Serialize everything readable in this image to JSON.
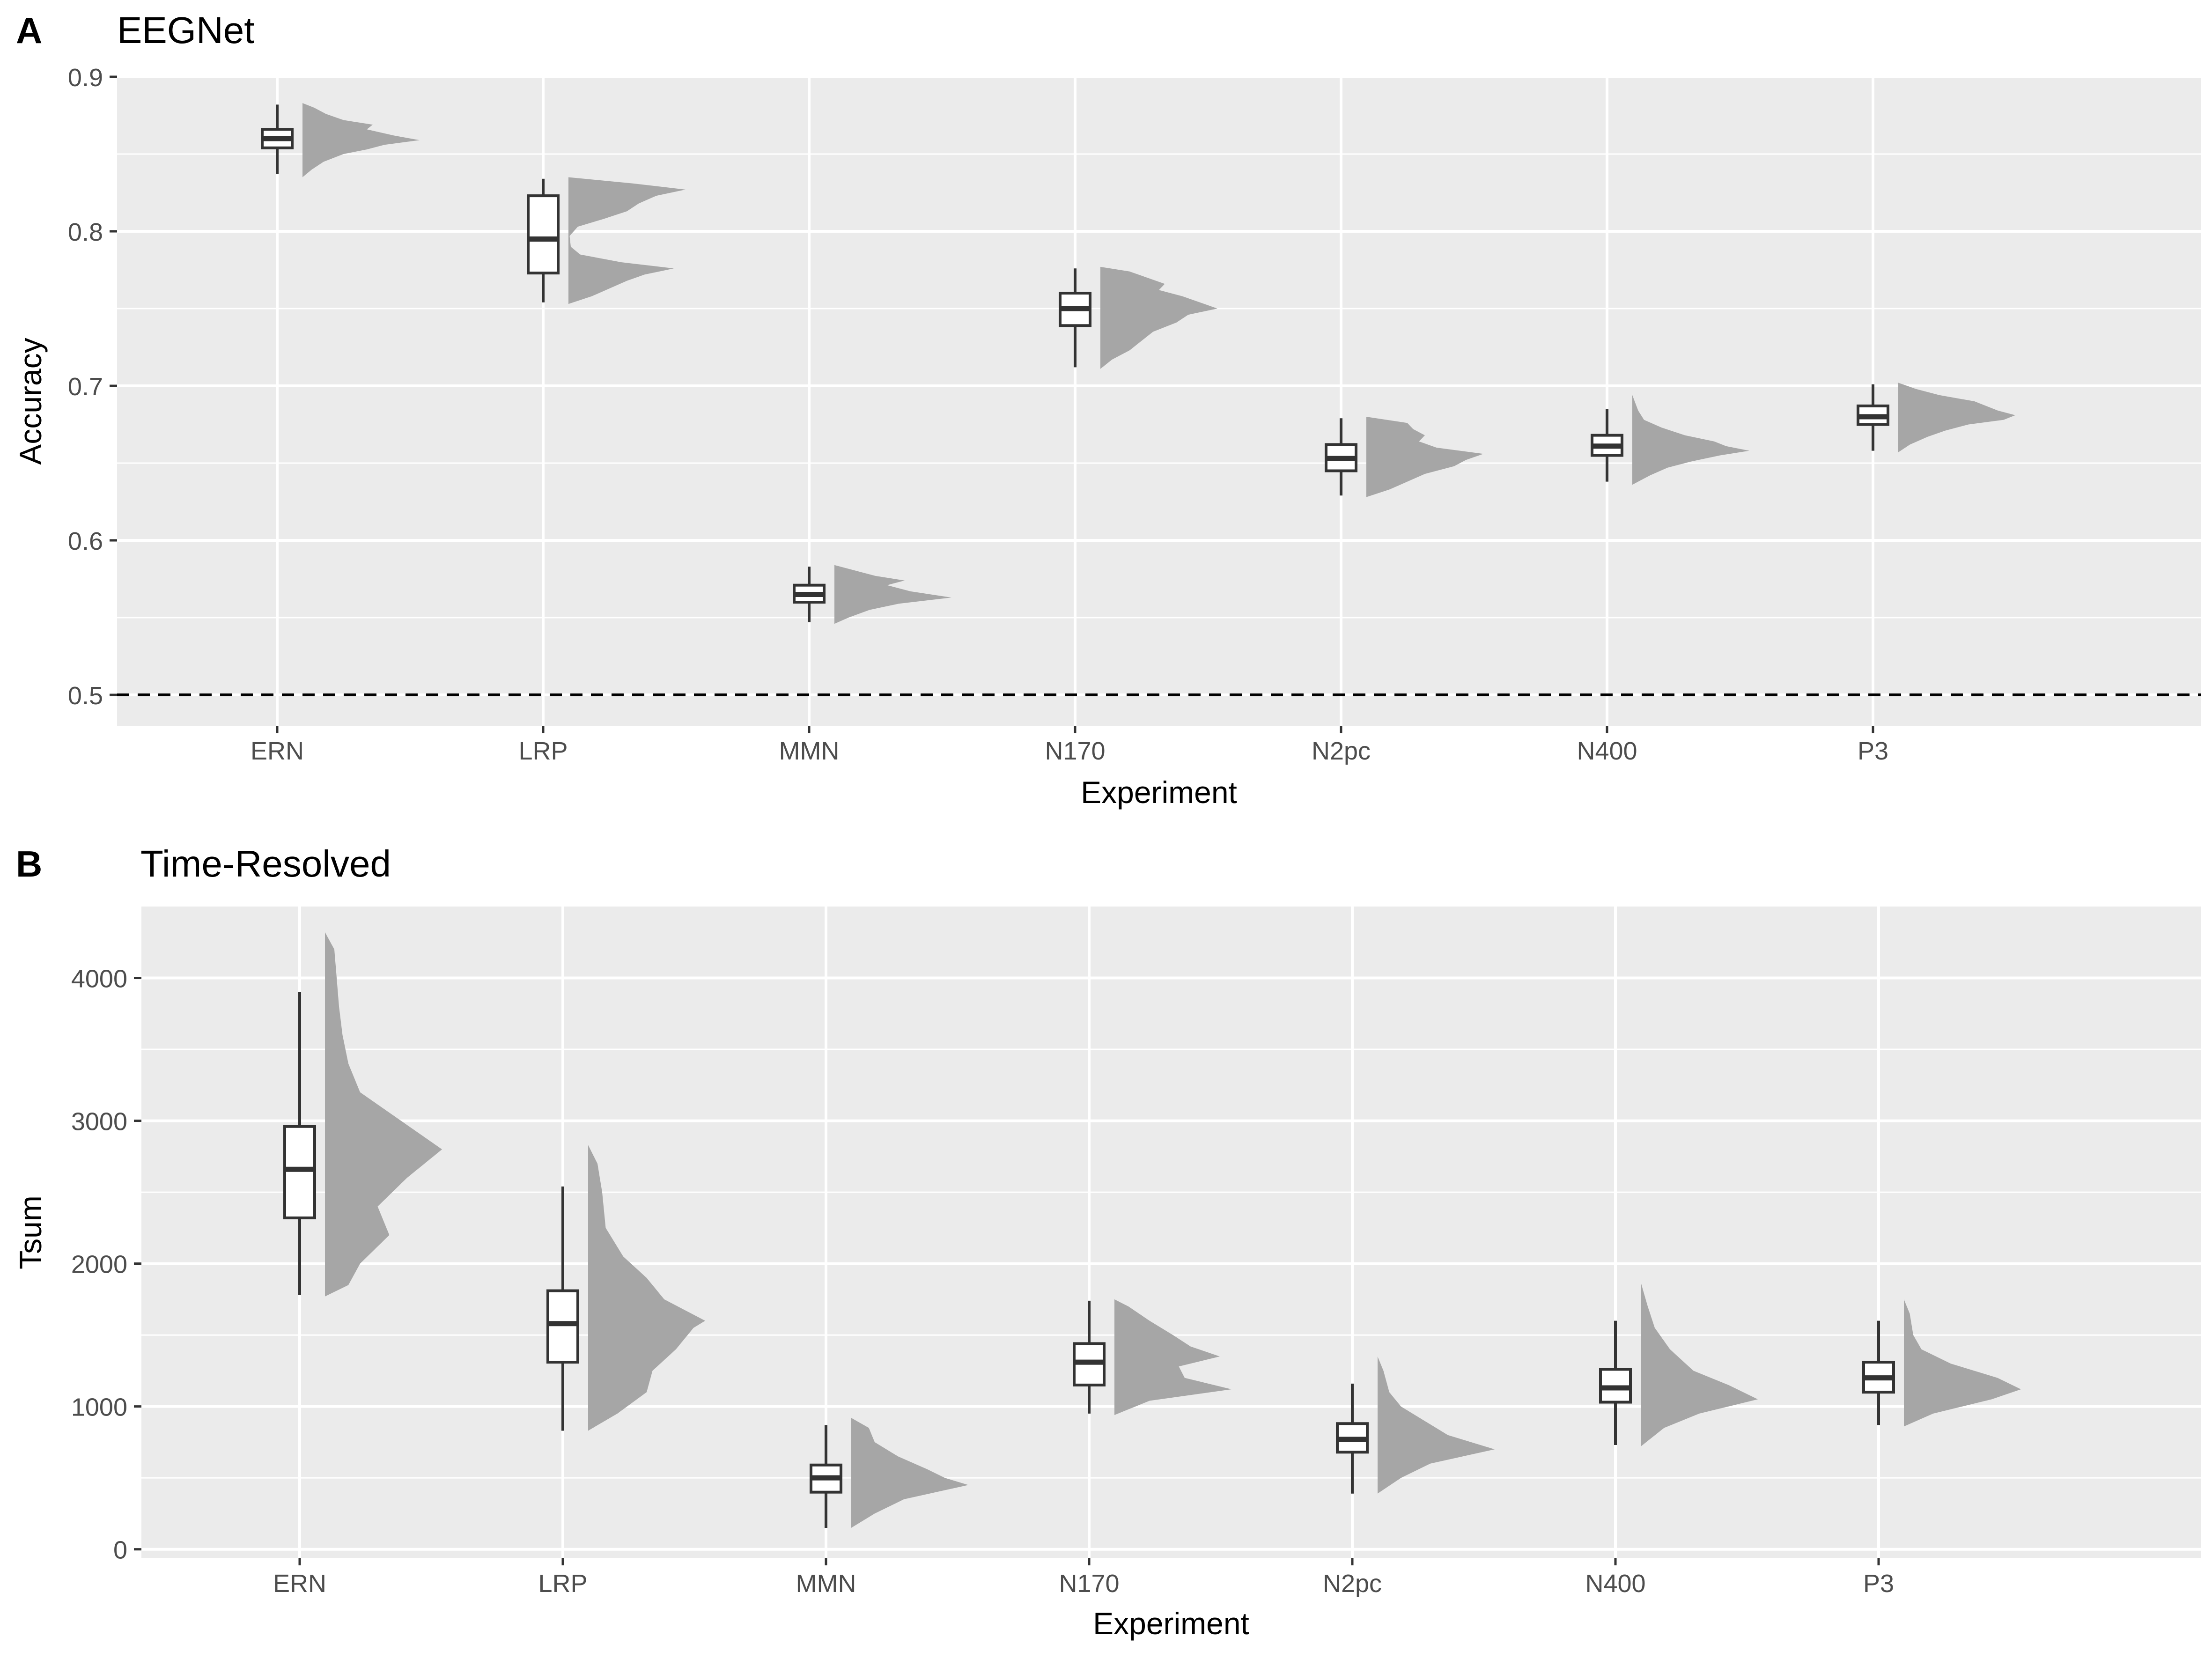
{
  "panels": [
    {
      "tag": "A",
      "title": "EEGNet"
    },
    {
      "tag": "B",
      "title": "Time-Resolved"
    }
  ],
  "colors": {
    "panel_bg": "#ebebeb",
    "grid": "#ffffff",
    "box_fill": "#ffffff",
    "box_line": "#333333",
    "violin": "#a6a6a6",
    "axis_text": "#4d4d4d",
    "title": "#000000"
  },
  "chart_data": [
    {
      "type": "raincloud",
      "panel": "A",
      "title": "EEGNet",
      "xlabel": "Experiment",
      "ylabel": "Accuracy",
      "categories": [
        "ERN",
        "LRP",
        "MMN",
        "N170",
        "N2pc",
        "N400",
        "P3"
      ],
      "ylim": [
        0.48,
        0.9
      ],
      "yticks": [
        0.5,
        0.6,
        0.7,
        0.8,
        0.9
      ],
      "ytick_labels": [
        "0.5",
        "0.6",
        "0.7",
        "0.8",
        "0.9"
      ],
      "reference_line": {
        "y": 0.5,
        "style": "dashed"
      },
      "grid": true,
      "boxes": [
        {
          "category": "ERN",
          "min": 0.837,
          "q1": 0.854,
          "median": 0.86,
          "q3": 0.866,
          "max": 0.882
        },
        {
          "category": "LRP",
          "min": 0.754,
          "q1": 0.773,
          "median": 0.795,
          "q3": 0.823,
          "max": 0.834
        },
        {
          "category": "MMN",
          "min": 0.547,
          "q1": 0.56,
          "median": 0.565,
          "q3": 0.571,
          "max": 0.583
        },
        {
          "category": "N170",
          "min": 0.712,
          "q1": 0.739,
          "median": 0.75,
          "q3": 0.76,
          "max": 0.776
        },
        {
          "category": "N2pc",
          "min": 0.629,
          "q1": 0.645,
          "median": 0.653,
          "q3": 0.662,
          "max": 0.679
        },
        {
          "category": "N400",
          "min": 0.638,
          "q1": 0.655,
          "median": 0.661,
          "q3": 0.668,
          "max": 0.685
        },
        {
          "category": "P3",
          "min": 0.658,
          "q1": 0.675,
          "median": 0.68,
          "q3": 0.687,
          "max": 0.701
        }
      ],
      "densities": [
        {
          "category": "ERN",
          "points": [
            [
              0.835,
              0
            ],
            [
              0.84,
              0.08
            ],
            [
              0.845,
              0.18
            ],
            [
              0.85,
              0.35
            ],
            [
              0.853,
              0.55
            ],
            [
              0.856,
              0.7
            ],
            [
              0.859,
              1.0
            ],
            [
              0.862,
              0.78
            ],
            [
              0.866,
              0.55
            ],
            [
              0.869,
              0.6
            ],
            [
              0.872,
              0.35
            ],
            [
              0.876,
              0.2
            ],
            [
              0.88,
              0.1
            ],
            [
              0.883,
              0
            ]
          ]
        },
        {
          "category": "LRP",
          "points": [
            [
              0.753,
              0
            ],
            [
              0.758,
              0.2
            ],
            [
              0.763,
              0.35
            ],
            [
              0.768,
              0.5
            ],
            [
              0.772,
              0.65
            ],
            [
              0.776,
              0.9
            ],
            [
              0.78,
              0.45
            ],
            [
              0.785,
              0.1
            ],
            [
              0.79,
              0.02
            ],
            [
              0.797,
              0.01
            ],
            [
              0.803,
              0.08
            ],
            [
              0.808,
              0.3
            ],
            [
              0.813,
              0.5
            ],
            [
              0.818,
              0.6
            ],
            [
              0.823,
              0.75
            ],
            [
              0.827,
              1.0
            ],
            [
              0.831,
              0.55
            ],
            [
              0.835,
              0
            ]
          ]
        },
        {
          "category": "MMN",
          "points": [
            [
              0.546,
              0
            ],
            [
              0.55,
              0.12
            ],
            [
              0.555,
              0.3
            ],
            [
              0.559,
              0.55
            ],
            [
              0.563,
              1.0
            ],
            [
              0.567,
              0.65
            ],
            [
              0.571,
              0.45
            ],
            [
              0.574,
              0.6
            ],
            [
              0.577,
              0.35
            ],
            [
              0.58,
              0.2
            ],
            [
              0.584,
              0
            ]
          ]
        },
        {
          "category": "N170",
          "points": [
            [
              0.711,
              0
            ],
            [
              0.717,
              0.1
            ],
            [
              0.723,
              0.25
            ],
            [
              0.729,
              0.35
            ],
            [
              0.735,
              0.45
            ],
            [
              0.741,
              0.65
            ],
            [
              0.746,
              0.75
            ],
            [
              0.75,
              1.0
            ],
            [
              0.754,
              0.85
            ],
            [
              0.758,
              0.7
            ],
            [
              0.762,
              0.5
            ],
            [
              0.766,
              0.55
            ],
            [
              0.77,
              0.4
            ],
            [
              0.774,
              0.25
            ],
            [
              0.777,
              0
            ]
          ]
        },
        {
          "category": "N2pc",
          "points": [
            [
              0.628,
              0
            ],
            [
              0.633,
              0.2
            ],
            [
              0.638,
              0.35
            ],
            [
              0.643,
              0.5
            ],
            [
              0.648,
              0.75
            ],
            [
              0.652,
              0.85
            ],
            [
              0.656,
              1.0
            ],
            [
              0.66,
              0.6
            ],
            [
              0.664,
              0.45
            ],
            [
              0.668,
              0.5
            ],
            [
              0.672,
              0.4
            ],
            [
              0.676,
              0.35
            ],
            [
              0.68,
              0
            ]
          ]
        },
        {
          "category": "N400",
          "points": [
            [
              0.636,
              0
            ],
            [
              0.642,
              0.15
            ],
            [
              0.647,
              0.3
            ],
            [
              0.651,
              0.5
            ],
            [
              0.655,
              0.75
            ],
            [
              0.658,
              1.0
            ],
            [
              0.661,
              0.8
            ],
            [
              0.664,
              0.7
            ],
            [
              0.668,
              0.45
            ],
            [
              0.673,
              0.25
            ],
            [
              0.678,
              0.1
            ],
            [
              0.684,
              0.05
            ],
            [
              0.69,
              0.02
            ],
            [
              0.694,
              0
            ]
          ]
        },
        {
          "category": "P3",
          "points": [
            [
              0.657,
              0
            ],
            [
              0.662,
              0.1
            ],
            [
              0.667,
              0.25
            ],
            [
              0.671,
              0.4
            ],
            [
              0.675,
              0.6
            ],
            [
              0.678,
              0.9
            ],
            [
              0.681,
              1.0
            ],
            [
              0.684,
              0.85
            ],
            [
              0.687,
              0.75
            ],
            [
              0.69,
              0.65
            ],
            [
              0.694,
              0.35
            ],
            [
              0.698,
              0.15
            ],
            [
              0.702,
              0
            ]
          ]
        }
      ]
    },
    {
      "type": "raincloud",
      "panel": "B",
      "title": "Time-Resolved",
      "xlabel": "Experiment",
      "ylabel": "Tsum",
      "categories": [
        "ERN",
        "LRP",
        "MMN",
        "N170",
        "N2pc",
        "N400",
        "P3"
      ],
      "ylim": [
        -60,
        4500
      ],
      "yticks": [
        0,
        1000,
        2000,
        3000,
        4000
      ],
      "ytick_labels": [
        "0",
        "1000",
        "2000",
        "3000",
        "4000"
      ],
      "grid": true,
      "boxes": [
        {
          "category": "ERN",
          "min": 1780,
          "q1": 2320,
          "median": 2660,
          "q3": 2960,
          "max": 3900
        },
        {
          "category": "LRP",
          "min": 830,
          "q1": 1310,
          "median": 1580,
          "q3": 1810,
          "max": 2540
        },
        {
          "category": "MMN",
          "min": 150,
          "q1": 400,
          "median": 500,
          "q3": 590,
          "max": 870
        },
        {
          "category": "N170",
          "min": 950,
          "q1": 1150,
          "median": 1310,
          "q3": 1440,
          "max": 1740
        },
        {
          "category": "N2pc",
          "min": 390,
          "q1": 680,
          "median": 770,
          "q3": 880,
          "max": 1160
        },
        {
          "category": "N400",
          "min": 730,
          "q1": 1030,
          "median": 1130,
          "q3": 1260,
          "max": 1600
        },
        {
          "category": "P3",
          "min": 870,
          "q1": 1100,
          "median": 1200,
          "q3": 1310,
          "max": 1600
        }
      ],
      "densities": [
        {
          "category": "ERN",
          "points": [
            [
              1770,
              0
            ],
            [
              1850,
              0.2
            ],
            [
              2000,
              0.3
            ],
            [
              2200,
              0.55
            ],
            [
              2400,
              0.45
            ],
            [
              2600,
              0.7
            ],
            [
              2800,
              1.0
            ],
            [
              3000,
              0.65
            ],
            [
              3200,
              0.3
            ],
            [
              3400,
              0.2
            ],
            [
              3600,
              0.15
            ],
            [
              3800,
              0.12
            ],
            [
              4000,
              0.1
            ],
            [
              4200,
              0.08
            ],
            [
              4320,
              0
            ]
          ]
        },
        {
          "category": "LRP",
          "points": [
            [
              830,
              0
            ],
            [
              950,
              0.25
            ],
            [
              1100,
              0.5
            ],
            [
              1250,
              0.55
            ],
            [
              1400,
              0.75
            ],
            [
              1550,
              0.9
            ],
            [
              1600,
              1.0
            ],
            [
              1750,
              0.65
            ],
            [
              1900,
              0.5
            ],
            [
              2050,
              0.3
            ],
            [
              2250,
              0.15
            ],
            [
              2500,
              0.12
            ],
            [
              2700,
              0.08
            ],
            [
              2830,
              0
            ]
          ]
        },
        {
          "category": "MMN",
          "points": [
            [
              150,
              0
            ],
            [
              250,
              0.2
            ],
            [
              350,
              0.45
            ],
            [
              450,
              1.0
            ],
            [
              500,
              0.8
            ],
            [
              560,
              0.65
            ],
            [
              650,
              0.4
            ],
            [
              750,
              0.2
            ],
            [
              850,
              0.15
            ],
            [
              920,
              0
            ]
          ]
        },
        {
          "category": "N170",
          "points": [
            [
              940,
              0
            ],
            [
              1040,
              0.3
            ],
            [
              1120,
              1.0
            ],
            [
              1200,
              0.6
            ],
            [
              1280,
              0.55
            ],
            [
              1350,
              0.9
            ],
            [
              1420,
              0.65
            ],
            [
              1500,
              0.5
            ],
            [
              1600,
              0.3
            ],
            [
              1700,
              0.12
            ],
            [
              1750,
              0
            ]
          ]
        },
        {
          "category": "N2pc",
          "points": [
            [
              390,
              0
            ],
            [
              500,
              0.2
            ],
            [
              600,
              0.45
            ],
            [
              700,
              1.0
            ],
            [
              800,
              0.6
            ],
            [
              900,
              0.4
            ],
            [
              1000,
              0.2
            ],
            [
              1100,
              0.1
            ],
            [
              1250,
              0.05
            ],
            [
              1350,
              0
            ]
          ]
        },
        {
          "category": "N400",
          "points": [
            [
              720,
              0
            ],
            [
              850,
              0.2
            ],
            [
              950,
              0.5
            ],
            [
              1050,
              1.0
            ],
            [
              1150,
              0.75
            ],
            [
              1250,
              0.45
            ],
            [
              1400,
              0.25
            ],
            [
              1550,
              0.12
            ],
            [
              1700,
              0.06
            ],
            [
              1870,
              0
            ]
          ]
        },
        {
          "category": "P3",
          "points": [
            [
              860,
              0
            ],
            [
              950,
              0.25
            ],
            [
              1050,
              0.75
            ],
            [
              1120,
              1.0
            ],
            [
              1200,
              0.8
            ],
            [
              1300,
              0.4
            ],
            [
              1400,
              0.15
            ],
            [
              1500,
              0.08
            ],
            [
              1650,
              0.05
            ],
            [
              1750,
              0
            ]
          ]
        }
      ]
    }
  ]
}
